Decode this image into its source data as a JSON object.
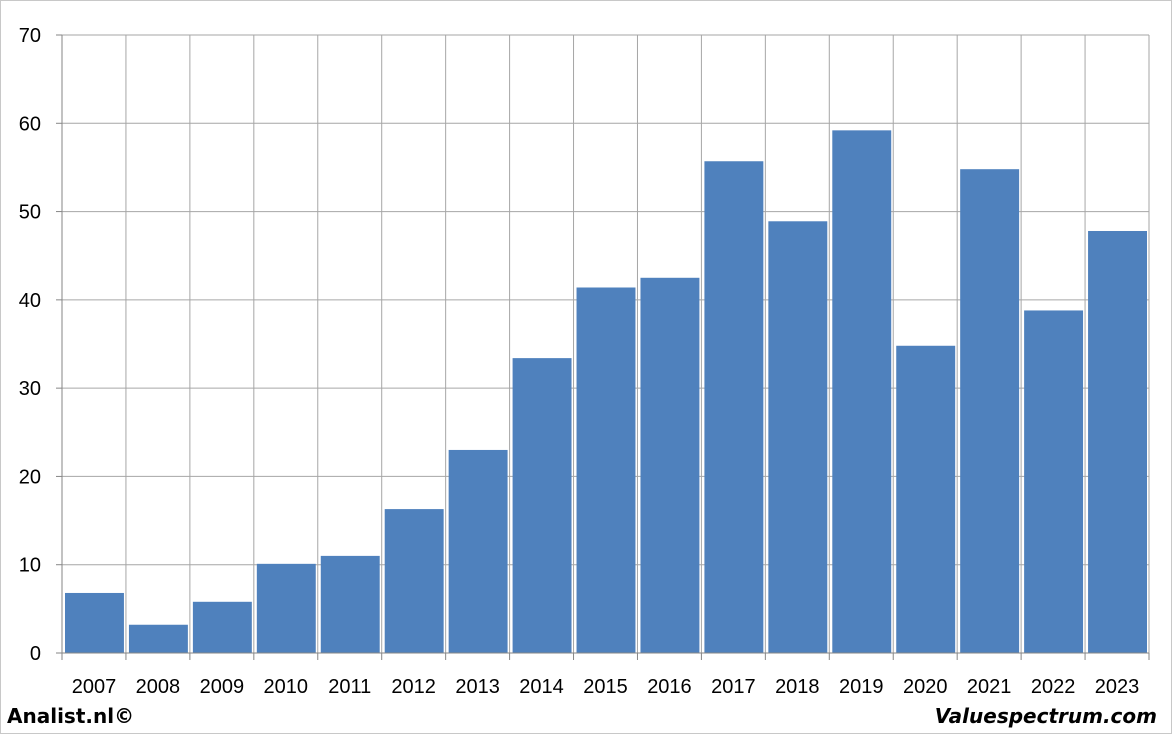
{
  "footer": {
    "left_text": "Analist.nl©",
    "right_text": "Valuespectrum.com"
  },
  "colors": {
    "bar": "#4f81bd",
    "grid": "#a6a6a6",
    "axis": "#868686"
  },
  "chart_data": {
    "type": "bar",
    "title": "",
    "xlabel": "",
    "ylabel": "",
    "categories": [
      "2007",
      "2008",
      "2009",
      "2010",
      "2011",
      "2012",
      "2013",
      "2014",
      "2015",
      "2016",
      "2017",
      "2018",
      "2019",
      "2020",
      "2021",
      "2022",
      "2023"
    ],
    "values": [
      6.8,
      3.2,
      5.8,
      10.1,
      11.0,
      16.3,
      23.0,
      33.4,
      41.4,
      42.5,
      55.7,
      48.9,
      59.2,
      34.8,
      54.8,
      38.8,
      47.8
    ],
    "ylim": [
      0,
      70
    ],
    "yticks": [
      0,
      10,
      20,
      30,
      40,
      50,
      60,
      70
    ],
    "grid": true,
    "legend": "none"
  }
}
